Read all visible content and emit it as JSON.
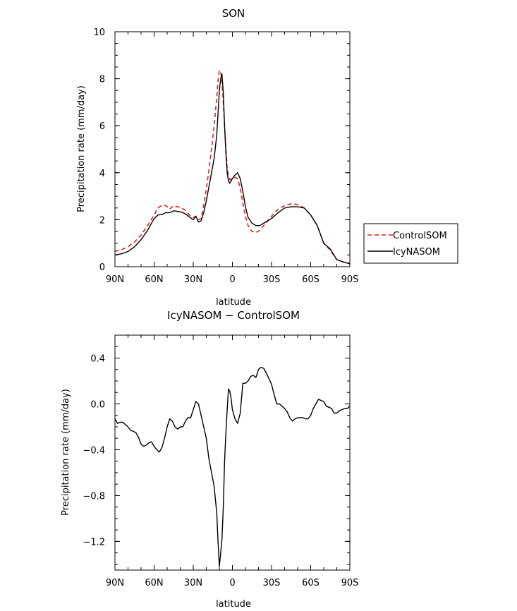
{
  "chart_data": [
    {
      "type": "line",
      "title": "SON",
      "xlabel": "latitude",
      "ylabel": "Precipitation rate (mm/day)",
      "xlim": [
        90,
        -90
      ],
      "ylim": [
        0,
        10
      ],
      "xticks": [
        90,
        60,
        30,
        0,
        -30,
        -60,
        -90
      ],
      "xtick_labels": [
        "90N",
        "60N",
        "30N",
        "0",
        "30S",
        "60S",
        "90S"
      ],
      "yticks": [
        0,
        2,
        4,
        6,
        8,
        10
      ],
      "ytick_labels": [
        "0",
        "2",
        "4",
        "6",
        "8",
        "10"
      ],
      "grid": false,
      "legend": "outside-right",
      "series": [
        {
          "name": "ControlSOM",
          "color": "#e02020",
          "dash": "dashed",
          "x": [
            90,
            85,
            80,
            75,
            70,
            65,
            60,
            57,
            54,
            51,
            48,
            45,
            42,
            39,
            36,
            33,
            30,
            28,
            26,
            24,
            22,
            20,
            18,
            16,
            14,
            12,
            11,
            10,
            9,
            8,
            7,
            6,
            5,
            4,
            3,
            2,
            1,
            0,
            -2,
            -4,
            -6,
            -8,
            -10,
            -12,
            -15,
            -18,
            -21,
            -24,
            -27,
            -30,
            -35,
            -40,
            -45,
            -50,
            -55,
            -60,
            -65,
            -70,
            -75,
            -80,
            -85,
            -90
          ],
          "y": [
            0.65,
            0.72,
            0.85,
            1.05,
            1.35,
            1.75,
            2.2,
            2.5,
            2.62,
            2.6,
            2.45,
            2.6,
            2.55,
            2.5,
            2.4,
            2.2,
            2.1,
            2.15,
            2.0,
            2.05,
            2.6,
            3.3,
            4.1,
            5.0,
            6.0,
            7.2,
            7.9,
            8.35,
            8.3,
            7.9,
            7.0,
            6.0,
            5.0,
            4.2,
            3.85,
            3.7,
            3.72,
            3.75,
            3.8,
            3.75,
            3.35,
            2.7,
            2.15,
            1.75,
            1.5,
            1.45,
            1.55,
            1.75,
            1.95,
            2.15,
            2.45,
            2.6,
            2.68,
            2.65,
            2.5,
            2.2,
            1.75,
            1.0,
            0.7,
            0.3,
            0.2,
            0.15
          ]
        },
        {
          "name": "IcyNASOM",
          "color": "#000000",
          "dash": "solid",
          "x": [
            90,
            85,
            80,
            75,
            70,
            65,
            60,
            57,
            54,
            51,
            48,
            45,
            42,
            39,
            36,
            33,
            30,
            28,
            26,
            24,
            22,
            20,
            18,
            16,
            14,
            12,
            11,
            10,
            9,
            8,
            7,
            6,
            5,
            4,
            3,
            2,
            1,
            0,
            -2,
            -4,
            -6,
            -8,
            -10,
            -12,
            -15,
            -18,
            -21,
            -24,
            -27,
            -30,
            -35,
            -40,
            -45,
            -50,
            -55,
            -60,
            -65,
            -70,
            -75,
            -80,
            -85,
            -90
          ],
          "y": [
            0.5,
            0.55,
            0.65,
            0.85,
            1.15,
            1.55,
            2.05,
            2.2,
            2.22,
            2.3,
            2.3,
            2.38,
            2.35,
            2.32,
            2.25,
            2.12,
            2.0,
            2.15,
            1.9,
            1.95,
            2.3,
            2.8,
            3.4,
            4.0,
            4.6,
            5.6,
            6.5,
            7.5,
            8.0,
            8.2,
            7.4,
            6.0,
            4.8,
            4.0,
            3.65,
            3.55,
            3.65,
            3.75,
            3.9,
            4.0,
            3.75,
            3.2,
            2.55,
            2.1,
            1.85,
            1.75,
            1.75,
            1.85,
            1.95,
            2.05,
            2.3,
            2.5,
            2.55,
            2.55,
            2.5,
            2.2,
            1.75,
            1.0,
            0.75,
            0.3,
            0.2,
            0.12
          ]
        }
      ]
    },
    {
      "type": "line",
      "title": "IcyNASOM − ControlSOM",
      "xlabel": "latitude",
      "ylabel": "Precipitation rate (mm/day)",
      "xlim": [
        90,
        -90
      ],
      "ylim": [
        -1.45,
        0.6
      ],
      "xticks": [
        90,
        60,
        30,
        0,
        -30,
        -60,
        -90
      ],
      "xtick_labels": [
        "90N",
        "60N",
        "30N",
        "0",
        "30S",
        "60S",
        "90S"
      ],
      "yticks": [
        0.4,
        0.0,
        -0.4,
        -0.8,
        -1.2
      ],
      "ytick_labels": [
        "0.4",
        "0.0",
        "−0.4",
        "−0.8",
        "−1.2"
      ],
      "grid": false,
      "series": [
        {
          "color": "#000000",
          "dash": "solid",
          "x": [
            90,
            88,
            86,
            84,
            82,
            80,
            78,
            76,
            74,
            72,
            70,
            68,
            66,
            64,
            62,
            60,
            58,
            56,
            54,
            52,
            50,
            48,
            46,
            44,
            42,
            40,
            38,
            36,
            34,
            32,
            30,
            28,
            26,
            24,
            22,
            20,
            18,
            16,
            14,
            12,
            11,
            10,
            9,
            8,
            7,
            6,
            5,
            4,
            3,
            2,
            1,
            0,
            -2,
            -4,
            -6,
            -8,
            -10,
            -12,
            -14,
            -16,
            -18,
            -20,
            -22,
            -24,
            -26,
            -28,
            -30,
            -32,
            -34,
            -36,
            -38,
            -40,
            -42,
            -44,
            -46,
            -48,
            -50,
            -52,
            -54,
            -56,
            -58,
            -60,
            -62,
            -64,
            -66,
            -68,
            -70,
            -72,
            -74,
            -76,
            -78,
            -80,
            -82,
            -84,
            -86,
            -88,
            -90
          ],
          "y": [
            -0.13,
            -0.17,
            -0.16,
            -0.16,
            -0.18,
            -0.2,
            -0.23,
            -0.24,
            -0.25,
            -0.29,
            -0.35,
            -0.37,
            -0.36,
            -0.34,
            -0.33,
            -0.37,
            -0.4,
            -0.42,
            -0.38,
            -0.3,
            -0.2,
            -0.13,
            -0.15,
            -0.2,
            -0.22,
            -0.2,
            -0.2,
            -0.15,
            -0.12,
            -0.12,
            -0.05,
            0.02,
            0.0,
            -0.1,
            -0.2,
            -0.3,
            -0.48,
            -0.6,
            -0.72,
            -0.95,
            -1.2,
            -1.42,
            -1.3,
            -1.18,
            -0.9,
            -0.5,
            -0.25,
            -0.05,
            0.13,
            0.11,
            0.05,
            -0.05,
            -0.13,
            -0.17,
            -0.08,
            0.18,
            0.18,
            0.2,
            0.24,
            0.25,
            0.23,
            0.3,
            0.32,
            0.31,
            0.27,
            0.22,
            0.17,
            0.08,
            0.0,
            0.0,
            -0.02,
            -0.04,
            -0.07,
            -0.12,
            -0.15,
            -0.13,
            -0.12,
            -0.12,
            -0.12,
            -0.13,
            -0.13,
            -0.1,
            -0.04,
            0.0,
            0.04,
            0.03,
            0.02,
            -0.02,
            -0.03,
            -0.04,
            -0.08,
            -0.08,
            -0.06,
            -0.05,
            -0.04,
            -0.04,
            -0.02
          ]
        }
      ]
    }
  ]
}
